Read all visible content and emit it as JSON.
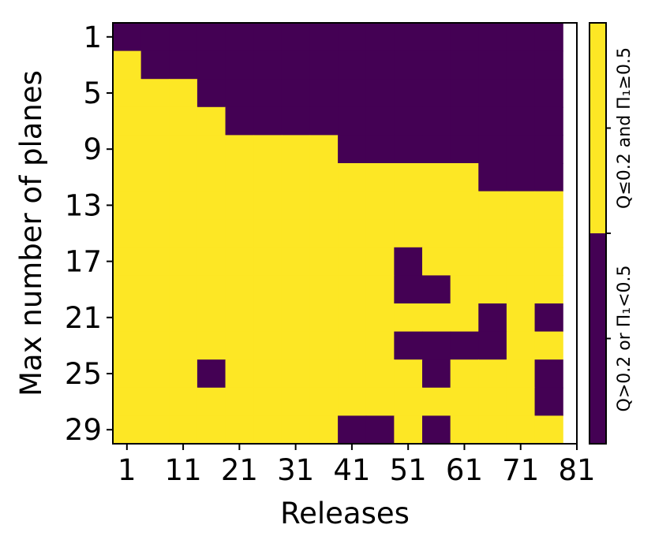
{
  "chart_data": {
    "type": "heatmap",
    "xlabel": "Releases",
    "ylabel": "Max number of planes",
    "x_ticks": [
      "1",
      "11",
      "21",
      "31",
      "41",
      "51",
      "61",
      "71",
      "81"
    ],
    "y_ticks": [
      "1",
      "5",
      "9",
      "13",
      "17",
      "21",
      "25",
      "29"
    ],
    "colorbar": {
      "labels": [
        "Q>0.2 or Π₁<0.5",
        "Q≤0.2 and Π₁≥0.5"
      ],
      "colors": [
        "#440154",
        "#fde725"
      ]
    },
    "cell_size": {
      "releases_per_col": 5,
      "planes_per_row": 2
    },
    "rows": [
      {
        "planes": "1-2",
        "row": "0000000000000000"
      },
      {
        "planes": "3-4",
        "row": "1000000000000000"
      },
      {
        "planes": "5-6",
        "row": "1110000000000000"
      },
      {
        "planes": "7-8",
        "row": "1111000000000000"
      },
      {
        "planes": "9-10",
        "row": "1111111100000000"
      },
      {
        "planes": "11-12",
        "row": "1111111111111000"
      },
      {
        "planes": "13-14",
        "row": "1111111111111111"
      },
      {
        "planes": "15-16",
        "row": "1111111111111111"
      },
      {
        "planes": "17-18",
        "row": "1111111111011111"
      },
      {
        "planes": "19-20",
        "row": "1111111111001111"
      },
      {
        "planes": "21-22",
        "row": "1111111111111010"
      },
      {
        "planes": "23-24",
        "row": "1111111111000011"
      },
      {
        "planes": "25-26",
        "row": "1110111111101110"
      },
      {
        "planes": "27-28",
        "row": "1111111111111110"
      },
      {
        "planes": "29-30",
        "row": "1111111100101111"
      }
    ]
  }
}
